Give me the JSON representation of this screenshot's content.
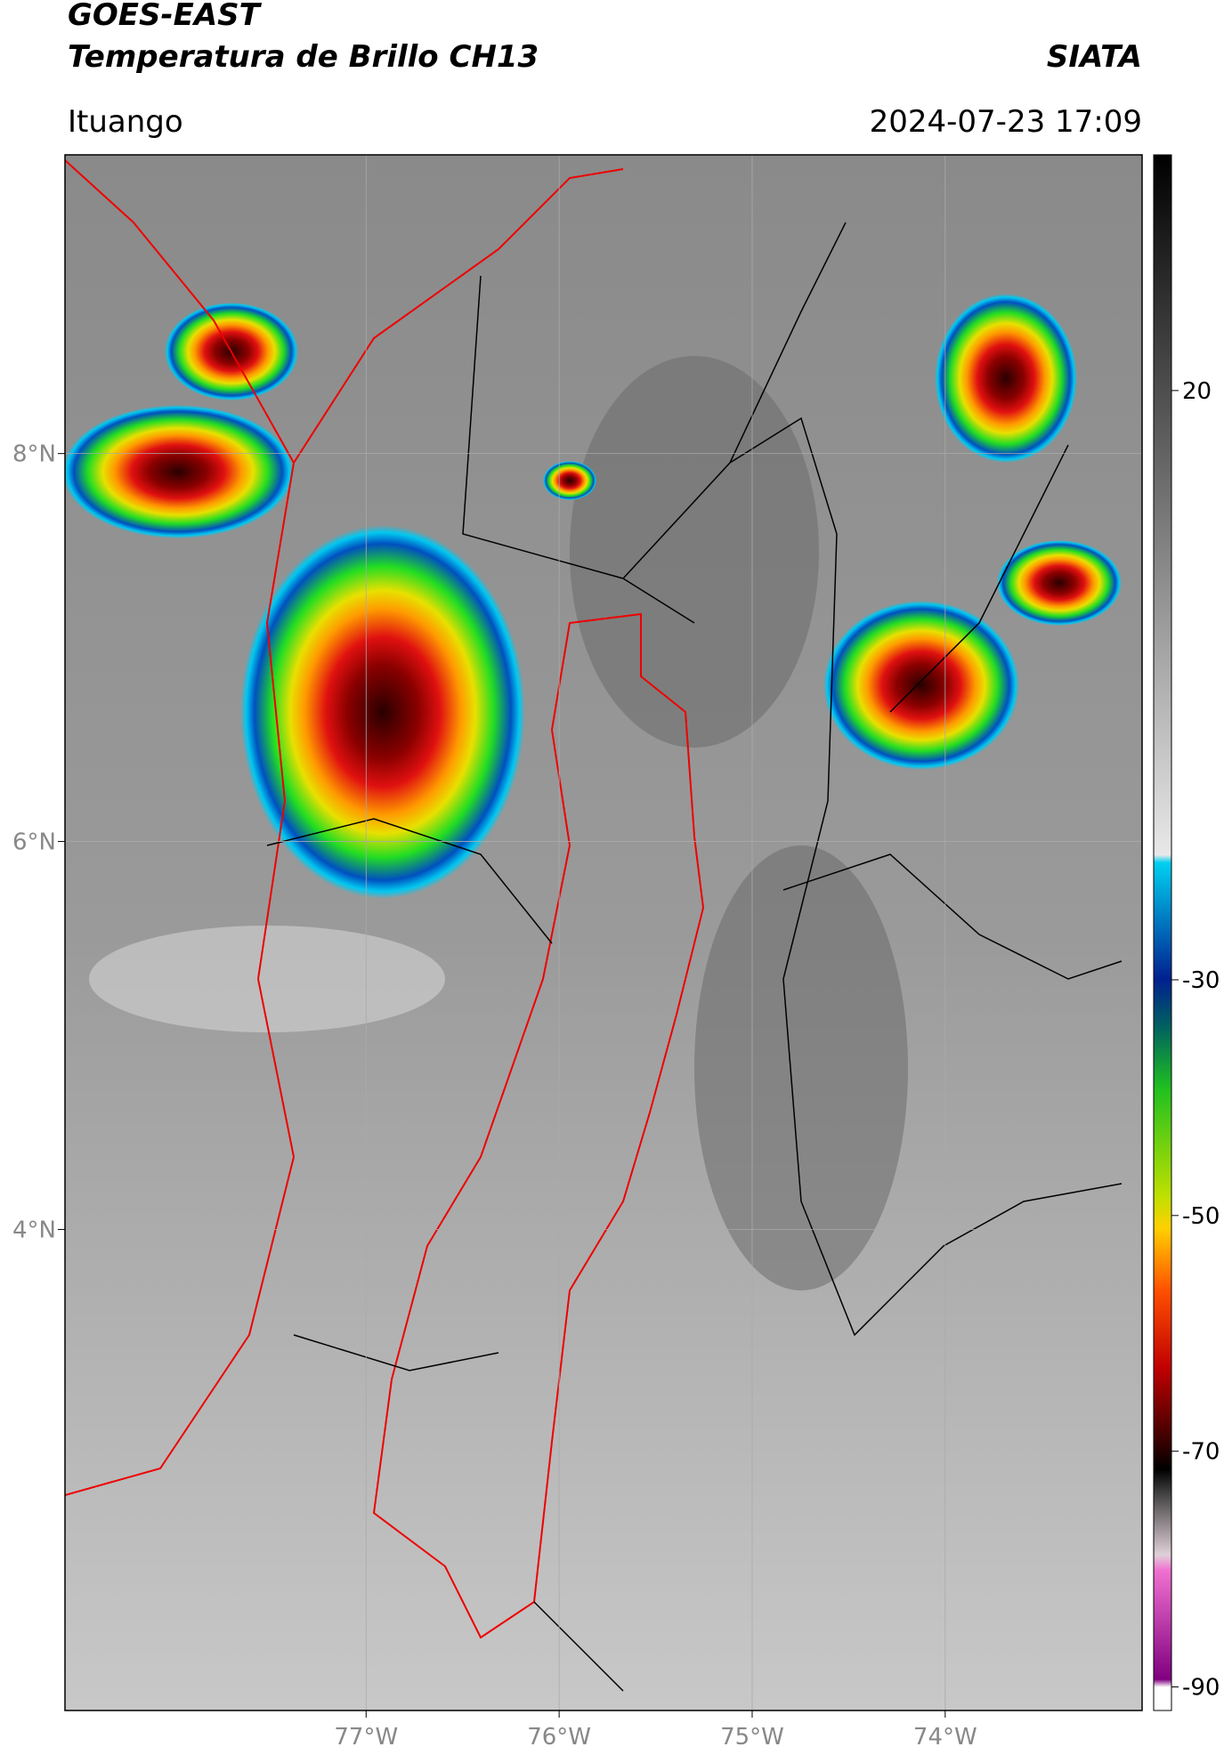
{
  "header": {
    "title": "GOES-EAST",
    "subtitle": "Temperatura de Brillo CH13",
    "source": "SIATA",
    "location": "Ituango",
    "datetime": "2024-07-23 17:09"
  },
  "map": {
    "lonlim": [
      -78.56,
      -72.98
    ],
    "latlim": [
      1.52,
      9.54
    ],
    "lonticks": [
      {
        "value": -77,
        "label": "77°W"
      },
      {
        "value": -76,
        "label": "76°W"
      },
      {
        "value": -75,
        "label": "75°W"
      },
      {
        "value": -74,
        "label": "74°W"
      }
    ],
    "latticks": [
      {
        "value": 8,
        "label": "8°N"
      },
      {
        "value": 6,
        "label": "6°N"
      },
      {
        "value": 4,
        "label": "4°N"
      }
    ]
  },
  "colorbar": {
    "range": [
      -92,
      40
    ],
    "ticks": [
      20,
      -30,
      -50,
      -70,
      -90
    ]
  }
}
